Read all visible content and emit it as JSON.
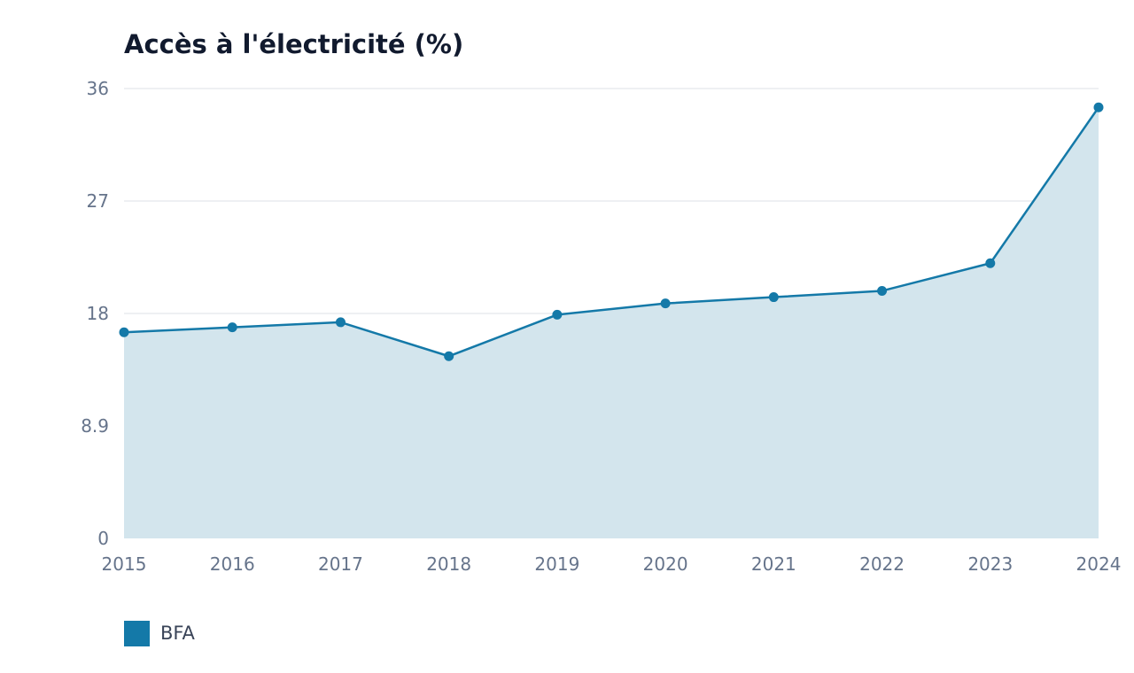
{
  "chart_data": {
    "type": "area",
    "title": "Accès à l'électricité (%)",
    "xlabel": "",
    "ylabel": "",
    "x": [
      "2015",
      "2016",
      "2017",
      "2018",
      "2019",
      "2020",
      "2021",
      "2022",
      "2023",
      "2024"
    ],
    "y_ticks": [
      "0",
      "8.9",
      "18",
      "27",
      "36"
    ],
    "y_tick_values": [
      0,
      8.95,
      17.9,
      26.85,
      35.8
    ],
    "ylim": [
      0,
      35.8
    ],
    "series": [
      {
        "name": "BFA",
        "values": [
          16.4,
          16.8,
          17.2,
          14.5,
          17.8,
          18.7,
          19.2,
          19.7,
          21.9,
          34.3
        ],
        "color": "#1479a8",
        "fill_color": "#d3e5ed"
      }
    ],
    "grid": true,
    "legend_position": "bottom-left"
  }
}
